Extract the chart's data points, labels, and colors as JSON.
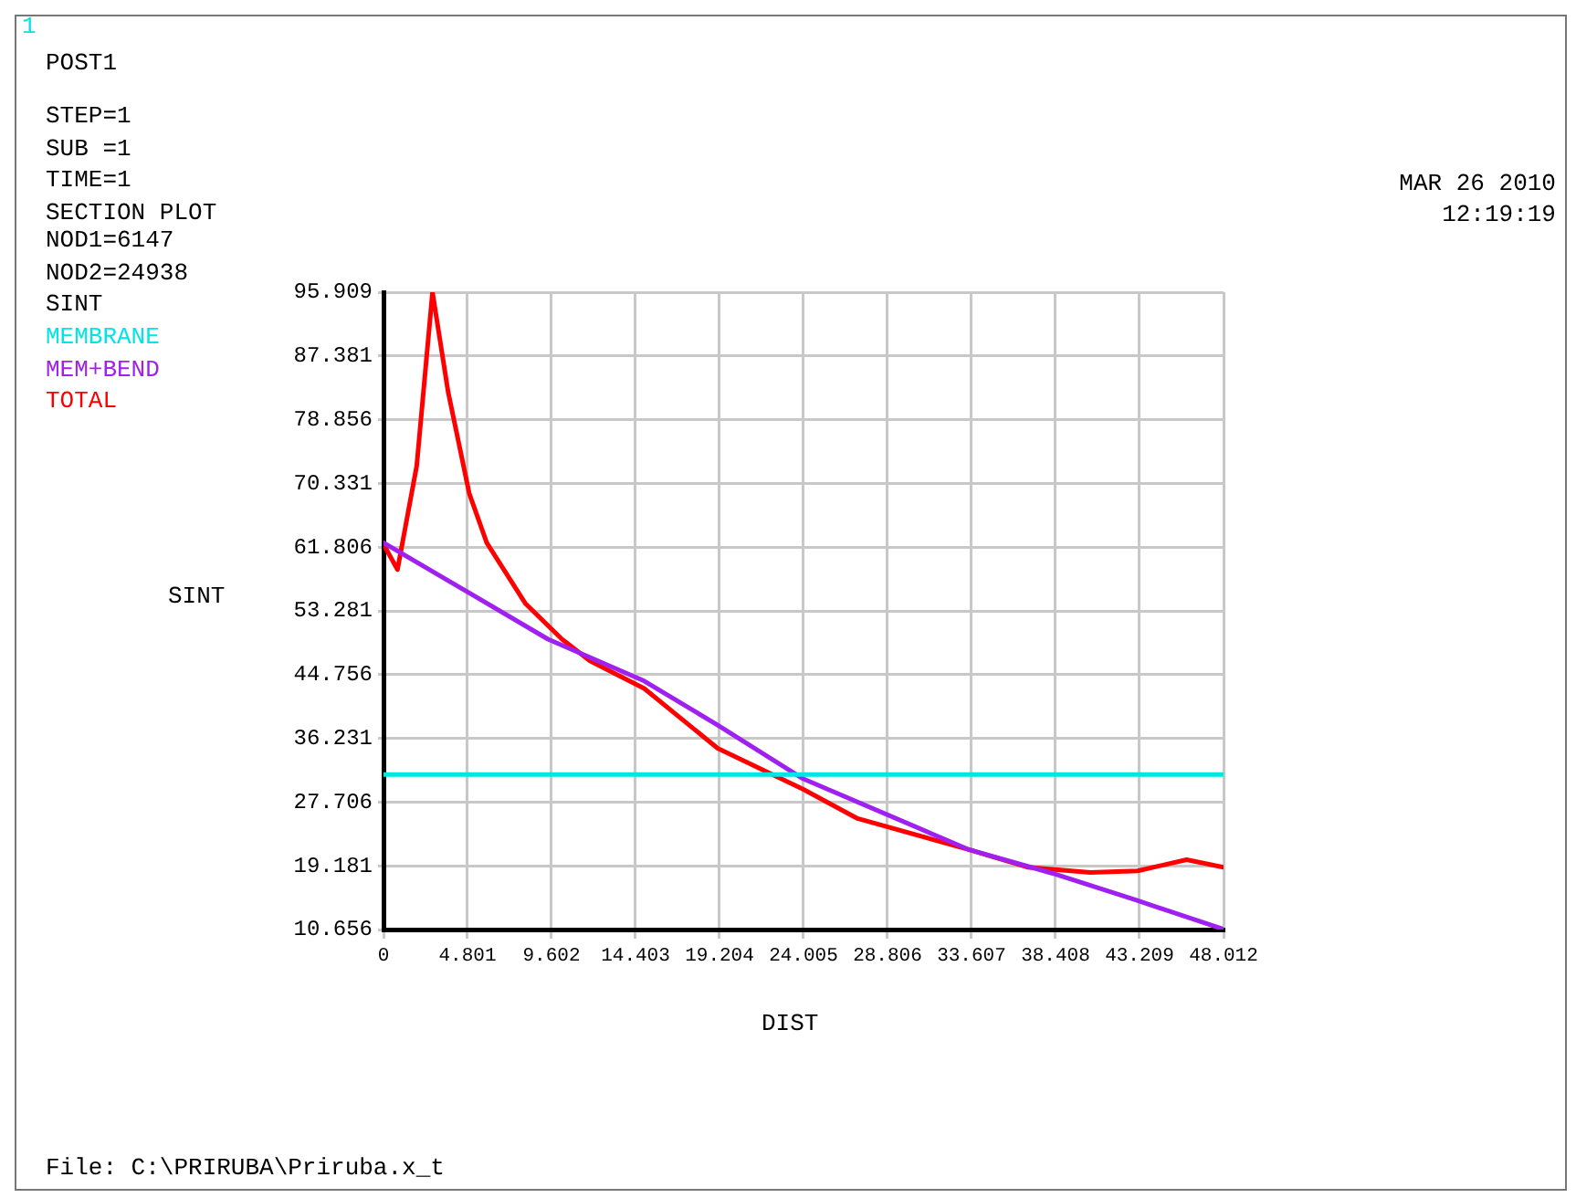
{
  "chart_data": {
    "type": "line",
    "xlabel": "DIST",
    "ylabel": "SINT",
    "annotations": [
      "1",
      "POST1",
      "STEP=1",
      "SUB =1",
      "TIME=1",
      "SECTION PLOT",
      "NOD1=6147",
      "NOD2=24938",
      "SINT",
      "MAR 26 2010",
      "12:19:19",
      "File: C:\\PRIRUBA\\Priruba.x_t"
    ],
    "xlim": [
      0,
      48.012
    ],
    "xticks": [
      0,
      4.801,
      9.602,
      14.403,
      19.204,
      24.005,
      28.806,
      33.607,
      38.408,
      43.209,
      48.012
    ],
    "ylim": [
      10.656,
      95.909
    ],
    "yticks": [
      10.656,
      19.181,
      27.706,
      36.231,
      44.756,
      53.281,
      61.806,
      70.331,
      78.856,
      87.381,
      95.909
    ],
    "grid": true,
    "legend": "top left",
    "marker": "none",
    "line_style": "solid",
    "series": [
      {
        "name": "MEMBRANE",
        "color": "#00e5e5",
        "x": [
          0,
          48.012
        ],
        "values": [
          31.4,
          31.4
        ]
      },
      {
        "name": "MEM+BEND",
        "color": "#a020f0",
        "x": [
          0,
          9.4,
          14.9,
          19.1,
          24.0,
          33.4,
          38.2,
          43.0,
          48.012
        ],
        "values": [
          62.4,
          49.5,
          43.9,
          38.0,
          30.8,
          21.4,
          18.2,
          14.6,
          10.7
        ]
      },
      {
        "name": "TOTAL",
        "color": "#ff0000",
        "x": [
          0,
          0.8,
          1.9,
          2.8,
          3.7,
          4.9,
          5.9,
          8.1,
          10.2,
          11.8,
          14.9,
          19.1,
          24.0,
          27.1,
          33.4,
          36.8,
          40.4,
          43.1,
          45.9,
          48.012
        ],
        "values": [
          62.2,
          58.8,
          72.7,
          95.9,
          82.5,
          69.0,
          62.4,
          54.3,
          49.5,
          46.6,
          42.9,
          34.9,
          29.4,
          25.5,
          21.4,
          19.0,
          18.3,
          18.5,
          20.0,
          19.0
        ]
      }
    ]
  }
}
